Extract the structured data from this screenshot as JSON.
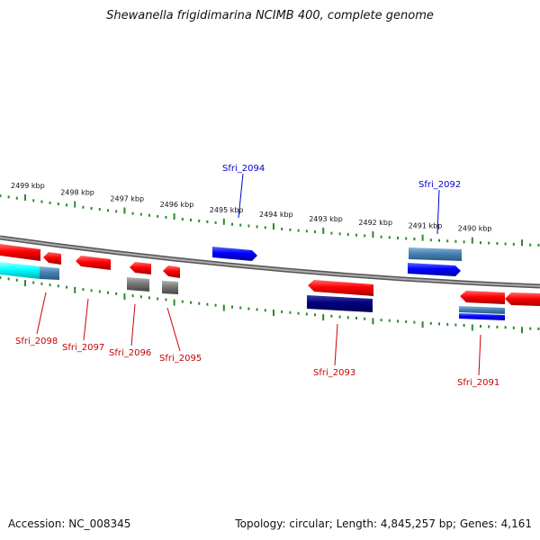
{
  "title": "Shewanella frigidimarina NCIMB 400, complete genome",
  "footer": {
    "accession": "Accession: NC_008345",
    "summary": "Topology: circular; Length: 4,845,257 bp; Genes: 4,161"
  },
  "scale_labels": [
    "2499 kbp",
    "2498 kbp",
    "2497 kbp",
    "2496 kbp",
    "2495 kbp",
    "2494 kbp",
    "2493 kbp",
    "2492 kbp",
    "2491 kbp",
    "2490 kbp"
  ],
  "gene_labels": [
    {
      "name": "Sfri_2094",
      "strand": "plus",
      "color": "#0000cc"
    },
    {
      "name": "Sfri_2092",
      "strand": "plus",
      "color": "#0000cc"
    },
    {
      "name": "Sfri_2098",
      "strand": "minus",
      "color": "#cc0000"
    },
    {
      "name": "Sfri_2097",
      "strand": "minus",
      "color": "#cc0000"
    },
    {
      "name": "Sfri_2096",
      "strand": "minus",
      "color": "#cc0000"
    },
    {
      "name": "Sfri_2095",
      "strand": "minus",
      "color": "#cc0000"
    },
    {
      "name": "Sfri_2093",
      "strand": "minus",
      "color": "#cc0000"
    },
    {
      "name": "Sfri_2091",
      "strand": "minus",
      "color": "#cc0000"
    }
  ],
  "colors": {
    "backbone": "#888888",
    "ticks": "#2a8a2a",
    "plus_strand": "#0000ff",
    "minus_strand": "#ff0000"
  }
}
